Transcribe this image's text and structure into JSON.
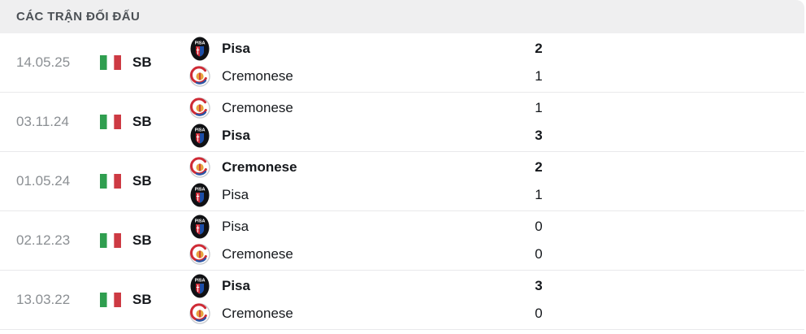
{
  "header": {
    "title": "CÁC TRẬN ĐỐI ĐẤU"
  },
  "colors": {
    "header_bg": "#efeff0",
    "header_text": "#4b5055",
    "date_text": "#8b8f93",
    "team_text": "#15181c",
    "divider": "#e9e9eb",
    "flag_green": "#2f9e4f",
    "flag_red": "#cd3a43",
    "pisa_black": "#101114",
    "pisa_red": "#cf2a35",
    "pisa_blue": "#1d4ea8",
    "cremonese_red": "#cf2a35",
    "cremonese_gold": "#e6a33e",
    "cremonese_blue": "#2a55a5"
  },
  "matches": [
    {
      "date": "14.05.25",
      "league": "SB",
      "country_flag": "italy-flag",
      "teams": [
        {
          "name": "Pisa",
          "logo": "pisa-logo",
          "score": "2",
          "winner": true
        },
        {
          "name": "Cremonese",
          "logo": "cremonese-logo",
          "score": "1",
          "winner": false
        }
      ]
    },
    {
      "date": "03.11.24",
      "league": "SB",
      "country_flag": "italy-flag",
      "teams": [
        {
          "name": "Cremonese",
          "logo": "cremonese-logo",
          "score": "1",
          "winner": false
        },
        {
          "name": "Pisa",
          "logo": "pisa-logo",
          "score": "3",
          "winner": true
        }
      ]
    },
    {
      "date": "01.05.24",
      "league": "SB",
      "country_flag": "italy-flag",
      "teams": [
        {
          "name": "Cremonese",
          "logo": "cremonese-logo",
          "score": "2",
          "winner": true
        },
        {
          "name": "Pisa",
          "logo": "pisa-logo",
          "score": "1",
          "winner": false
        }
      ]
    },
    {
      "date": "02.12.23",
      "league": "SB",
      "country_flag": "italy-flag",
      "teams": [
        {
          "name": "Pisa",
          "logo": "pisa-logo",
          "score": "0",
          "winner": false
        },
        {
          "name": "Cremonese",
          "logo": "cremonese-logo",
          "score": "0",
          "winner": false
        }
      ]
    },
    {
      "date": "13.03.22",
      "league": "SB",
      "country_flag": "italy-flag",
      "teams": [
        {
          "name": "Pisa",
          "logo": "pisa-logo",
          "score": "3",
          "winner": true
        },
        {
          "name": "Cremonese",
          "logo": "cremonese-logo",
          "score": "0",
          "winner": false
        }
      ]
    }
  ]
}
